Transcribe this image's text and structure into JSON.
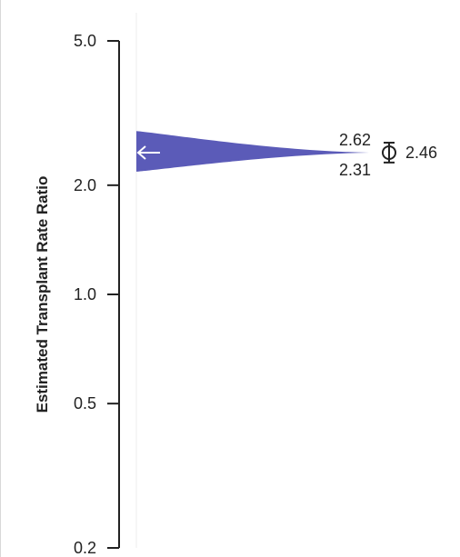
{
  "chart_data": {
    "type": "scatter",
    "title": "",
    "xlabel": "",
    "ylabel": "Estimated Transplant Rate Ratio",
    "yscale": "log",
    "ylim": [
      0.2,
      5.0
    ],
    "yticks": [
      {
        "value": 5.0,
        "label": "5.0"
      },
      {
        "value": 2.0,
        "label": "2.0"
      },
      {
        "value": 1.0,
        "label": "1.0"
      },
      {
        "value": 0.5,
        "label": "0.5"
      },
      {
        "value": 0.2,
        "label": "0.2"
      }
    ],
    "grid": false,
    "legend": "none",
    "distribution": {
      "shape": "horizontal-density",
      "color": "#5b5bb8",
      "mode": 2.46,
      "support": [
        2.18,
        2.82
      ]
    },
    "estimate": {
      "point": 2.46,
      "lower": 2.31,
      "upper": 2.62,
      "point_label": "2.46",
      "lower_label": "2.31",
      "upper_label": "2.62"
    }
  }
}
